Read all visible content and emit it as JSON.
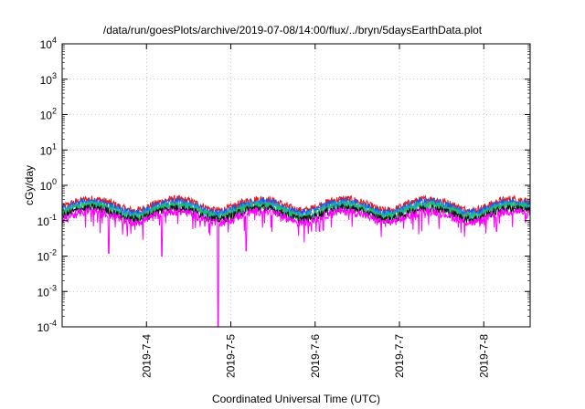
{
  "chart_data": {
    "type": "line",
    "title": "/data/run/goesPlots/archive/2019-07-08/14:00/flux/../bryn/5daysEarthData.plot",
    "xlabel": "Coordinated Universal Time (UTC)",
    "ylabel": "cGy/day",
    "yscale": "log",
    "ylim": [
      0.0001,
      10000
    ],
    "xlim": [
      2.0,
      7.55
    ],
    "x_ticks": [
      {
        "x": 3,
        "label": "2019-7-4"
      },
      {
        "x": 4,
        "label": "2019-7-5"
      },
      {
        "x": 5,
        "label": "2019-7-6"
      },
      {
        "x": 6,
        "label": "2019-7-7"
      },
      {
        "x": 7,
        "label": "2019-7-8"
      }
    ],
    "y_ticks": [
      {
        "value": 0.0001,
        "base": "10",
        "exp": "-4"
      },
      {
        "value": 0.001,
        "base": "10",
        "exp": "-3"
      },
      {
        "value": 0.01,
        "base": "10",
        "exp": "-2"
      },
      {
        "value": 0.1,
        "base": "10",
        "exp": "-1"
      },
      {
        "value": 1,
        "base": "10",
        "exp": "0"
      },
      {
        "value": 10,
        "base": "10",
        "exp": "1"
      },
      {
        "value": 100,
        "base": "10",
        "exp": "2"
      },
      {
        "value": 1000,
        "base": "10",
        "exp": "3"
      },
      {
        "value": 10000,
        "base": "10",
        "exp": "4"
      }
    ],
    "grid": true,
    "legend": "none",
    "series": [
      {
        "color": "#e31a1c",
        "base": 0.3
      },
      {
        "color": "#2255dd",
        "base": 0.26
      },
      {
        "color": "#1a9fd8",
        "base": 0.22
      },
      {
        "color": "#20c060",
        "base": 0.2
      },
      {
        "color": "#111111",
        "base": 0.17
      },
      {
        "color": "#ff00ff",
        "base": 0.14
      }
    ]
  }
}
